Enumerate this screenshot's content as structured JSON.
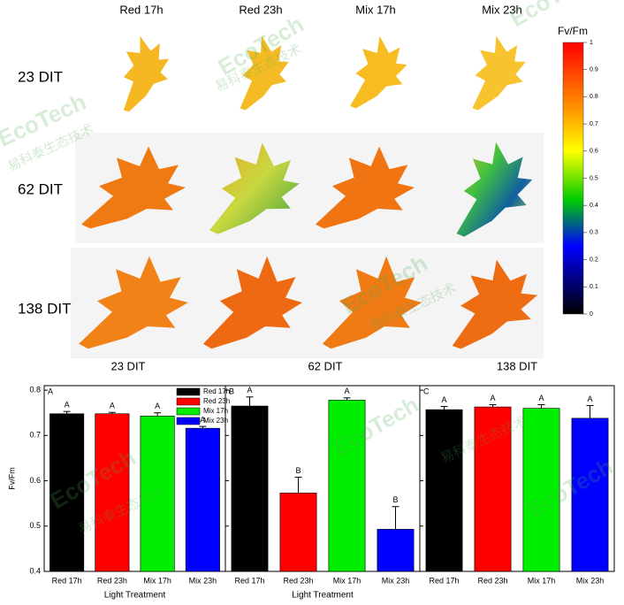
{
  "figure": {
    "columns": [
      "Red 17h",
      "Red 23h",
      "Mix 17h",
      "Mix 23h"
    ],
    "rows": [
      "23 DIT",
      "62 DIT",
      "138 DIT"
    ],
    "bottom_labels": [
      "23 DIT",
      "62 DIT",
      "138 DIT"
    ],
    "colorbar": {
      "title": "Fv/Fm",
      "ticks": [
        0,
        0.1,
        0.2,
        0.3,
        0.4,
        0.5,
        0.6,
        0.7,
        0.8,
        0.9,
        1
      ],
      "lim": [
        0,
        1
      ]
    },
    "watermark": [
      "EcoTech",
      "易科泰生态技术"
    ]
  },
  "chart_data": [
    {
      "type": "bar",
      "panel": "A",
      "ylabel": "Fv/Fm",
      "xlabel": "Light Treatment",
      "legend": true,
      "categories": [
        "Red 17h",
        "Red 23h",
        "Mix 17h",
        "Mix 23h"
      ],
      "colors": [
        "#000000",
        "#ff0000",
        "#00ee00",
        "#0000ff"
      ],
      "values": [
        0.748,
        0.748,
        0.743,
        0.716
      ],
      "errors": [
        0.005,
        0.003,
        0.007,
        0.004
      ],
      "significance": [
        "A",
        "A",
        "A",
        "A"
      ],
      "ylim": [
        0.4,
        0.81
      ],
      "yticks": [
        0.4,
        0.5,
        0.6,
        0.7,
        0.8
      ]
    },
    {
      "type": "bar",
      "panel": "B",
      "xlabel": "Light Treatment",
      "categories": [
        "Red 17h",
        "Red 23h",
        "Mix 17h",
        "Mix 23h"
      ],
      "colors": [
        "#000000",
        "#ff0000",
        "#00ee00",
        "#0000ff"
      ],
      "values": [
        0.765,
        0.573,
        0.778,
        0.493
      ],
      "errors": [
        0.02,
        0.035,
        0.005,
        0.05
      ],
      "significance": [
        "A",
        "B",
        "A",
        "B"
      ],
      "ylim": [
        0.4,
        0.81
      ],
      "yticks": [
        0.4,
        0.5,
        0.6,
        0.7,
        0.8
      ]
    },
    {
      "type": "bar",
      "panel": "C",
      "categories": [
        "Red 17h",
        "Red 23h",
        "Mix 17h",
        "Mix 23h"
      ],
      "colors": [
        "#000000",
        "#ff0000",
        "#00ee00",
        "#0000ff"
      ],
      "values": [
        0.757,
        0.763,
        0.76,
        0.738
      ],
      "errors": [
        0.007,
        0.005,
        0.008,
        0.028
      ],
      "significance": [
        "A",
        "A",
        "A",
        "A"
      ],
      "ylim": [
        0.4,
        0.81
      ],
      "yticks": [
        0.4,
        0.5,
        0.6,
        0.7,
        0.8
      ]
    }
  ]
}
